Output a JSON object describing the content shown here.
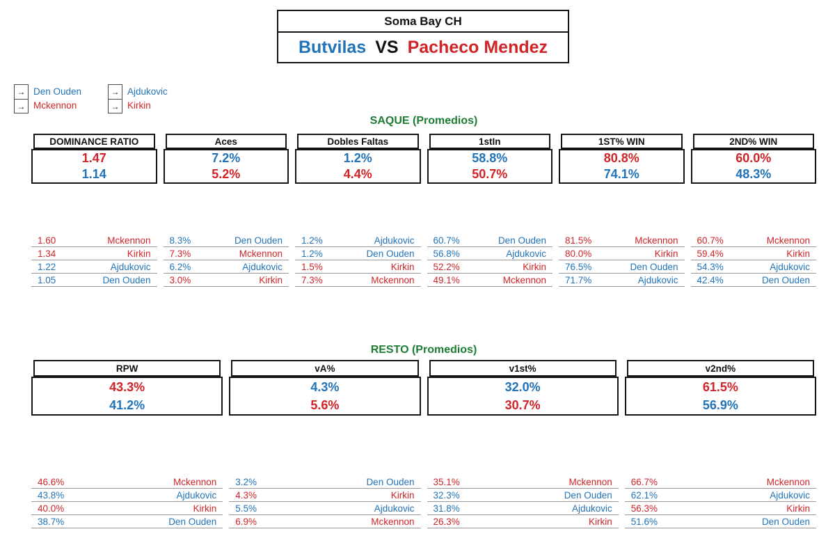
{
  "header": {
    "title": "Soma Bay CH",
    "player_left": "Butvilas",
    "vs": "VS",
    "player_right": "Pacheco Mendez"
  },
  "legend": {
    "arrow_icon": "→",
    "groups": [
      {
        "items": [
          {
            "label": "Den Ouden",
            "color": "blue"
          },
          {
            "label": "Mckennon",
            "color": "red"
          }
        ]
      },
      {
        "items": [
          {
            "label": "Ajdukovic",
            "color": "blue"
          },
          {
            "label": "Kirkin",
            "color": "red"
          }
        ]
      }
    ]
  },
  "sections": [
    {
      "title": "SAQUE (Promedios)",
      "stats": [
        {
          "label": "DOMINANCE RATIO",
          "values": [
            {
              "text": "1.47",
              "color": "red"
            },
            {
              "text": "1.14",
              "color": "blue"
            }
          ],
          "rows": [
            {
              "value": "1.60",
              "name": "Mckennon",
              "color": "red"
            },
            {
              "value": "1.34",
              "name": "Kirkin",
              "color": "red"
            },
            {
              "value": "1.22",
              "name": "Ajdukovic",
              "color": "blue"
            },
            {
              "value": "1.05",
              "name": "Den Ouden",
              "color": "blue"
            }
          ]
        },
        {
          "label": "Aces",
          "values": [
            {
              "text": "7.2%",
              "color": "blue"
            },
            {
              "text": "5.2%",
              "color": "red"
            }
          ],
          "rows": [
            {
              "value": "8.3%",
              "name": "Den Ouden",
              "color": "blue"
            },
            {
              "value": "7.3%",
              "name": "Mckennon",
              "color": "red"
            },
            {
              "value": "6.2%",
              "name": "Ajdukovic",
              "color": "blue"
            },
            {
              "value": "3.0%",
              "name": "Kirkin",
              "color": "red"
            }
          ]
        },
        {
          "label": "Dobles Faltas",
          "values": [
            {
              "text": "1.2%",
              "color": "blue"
            },
            {
              "text": "4.4%",
              "color": "red"
            }
          ],
          "rows": [
            {
              "value": "1.2%",
              "name": "Ajdukovic",
              "color": "blue"
            },
            {
              "value": "1.2%",
              "name": "Den Ouden",
              "color": "blue"
            },
            {
              "value": "1.5%",
              "name": "Kirkin",
              "color": "red"
            },
            {
              "value": "7.3%",
              "name": "Mckennon",
              "color": "red"
            }
          ]
        },
        {
          "label": "1stIn",
          "values": [
            {
              "text": "58.8%",
              "color": "blue"
            },
            {
              "text": "50.7%",
              "color": "red"
            }
          ],
          "rows": [
            {
              "value": "60.7%",
              "name": "Den Ouden",
              "color": "blue"
            },
            {
              "value": "56.8%",
              "name": "Ajdukovic",
              "color": "blue"
            },
            {
              "value": "52.2%",
              "name": "Kirkin",
              "color": "red"
            },
            {
              "value": "49.1%",
              "name": "Mckennon",
              "color": "red"
            }
          ]
        },
        {
          "label": "1ST% WIN",
          "values": [
            {
              "text": "80.8%",
              "color": "red"
            },
            {
              "text": "74.1%",
              "color": "blue"
            }
          ],
          "rows": [
            {
              "value": "81.5%",
              "name": "Mckennon",
              "color": "red"
            },
            {
              "value": "80.0%",
              "name": "Kirkin",
              "color": "red"
            },
            {
              "value": "76.5%",
              "name": "Den Ouden",
              "color": "blue"
            },
            {
              "value": "71.7%",
              "name": "Ajdukovic",
              "color": "blue"
            }
          ]
        },
        {
          "label": "2ND% WIN",
          "values": [
            {
              "text": "60.0%",
              "color": "red"
            },
            {
              "text": "48.3%",
              "color": "blue"
            }
          ],
          "rows": [
            {
              "value": "60.7%",
              "name": "Mckennon",
              "color": "red"
            },
            {
              "value": "59.4%",
              "name": "Kirkin",
              "color": "red"
            },
            {
              "value": "54.3%",
              "name": "Ajdukovic",
              "color": "blue"
            },
            {
              "value": "42.4%",
              "name": "Den Ouden",
              "color": "blue"
            }
          ]
        }
      ]
    },
    {
      "title": "RESTO (Promedios)",
      "stats": [
        {
          "label": "RPW",
          "values": [
            {
              "text": "43.3%",
              "color": "red"
            },
            {
              "text": "41.2%",
              "color": "blue"
            }
          ],
          "rows": [
            {
              "value": "46.6%",
              "name": "Mckennon",
              "color": "red"
            },
            {
              "value": "43.8%",
              "name": "Ajdukovic",
              "color": "blue"
            },
            {
              "value": "40.0%",
              "name": "Kirkin",
              "color": "red"
            },
            {
              "value": "38.7%",
              "name": "Den Ouden",
              "color": "blue"
            }
          ]
        },
        {
          "label": "vA%",
          "values": [
            {
              "text": "4.3%",
              "color": "blue"
            },
            {
              "text": "5.6%",
              "color": "red"
            }
          ],
          "rows": [
            {
              "value": "3.2%",
              "name": "Den Ouden",
              "color": "blue"
            },
            {
              "value": "4.3%",
              "name": "Kirkin",
              "color": "red"
            },
            {
              "value": "5.5%",
              "name": "Ajdukovic",
              "color": "blue"
            },
            {
              "value": "6.9%",
              "name": "Mckennon",
              "color": "red"
            }
          ]
        },
        {
          "label": "v1st%",
          "values": [
            {
              "text": "32.0%",
              "color": "blue"
            },
            {
              "text": "30.7%",
              "color": "red"
            }
          ],
          "rows": [
            {
              "value": "35.1%",
              "name": "Mckennon",
              "color": "red"
            },
            {
              "value": "32.3%",
              "name": "Den Ouden",
              "color": "blue"
            },
            {
              "value": "31.8%",
              "name": "Ajdukovic",
              "color": "blue"
            },
            {
              "value": "26.3%",
              "name": "Kirkin",
              "color": "red"
            }
          ]
        },
        {
          "label": "v2nd%",
          "values": [
            {
              "text": "61.5%",
              "color": "red"
            },
            {
              "text": "56.9%",
              "color": "blue"
            }
          ],
          "rows": [
            {
              "value": "66.7%",
              "name": "Mckennon",
              "color": "red"
            },
            {
              "value": "62.1%",
              "name": "Ajdukovic",
              "color": "blue"
            },
            {
              "value": "56.3%",
              "name": "Kirkin",
              "color": "red"
            },
            {
              "value": "51.6%",
              "name": "Den Ouden",
              "color": "blue"
            }
          ]
        }
      ]
    }
  ],
  "colors": {
    "blue": "#2273B8",
    "red": "#D02428",
    "green": "#1E7C33"
  }
}
